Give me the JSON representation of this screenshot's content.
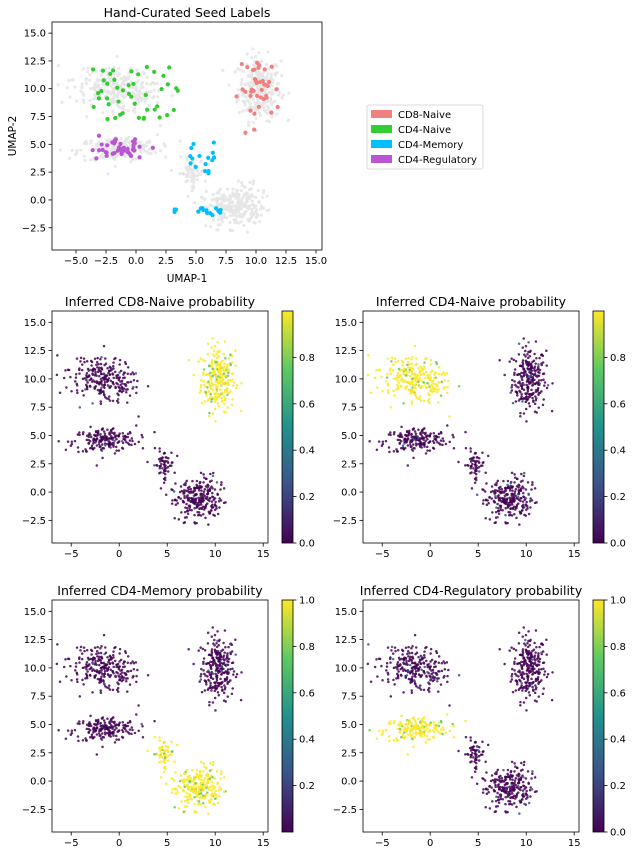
{
  "chart_data": [
    {
      "type": "scatter",
      "title": "Hand-Curated Seed Labels",
      "xlabel": "UMAP-1",
      "ylabel": "UMAP-2",
      "xlim": [
        -7,
        15.5
      ],
      "ylim": [
        -4.5,
        16
      ],
      "x_ticks": [
        -5.0,
        -2.5,
        0.0,
        2.5,
        5.0,
        7.5,
        10.0,
        12.5,
        15.0
      ],
      "y_ticks": [
        -2.5,
        0.0,
        2.5,
        5.0,
        7.5,
        10.0,
        12.5,
        15.0
      ],
      "x_tick_labels": [
        "−5.0",
        "−2.5",
        "0.0",
        "2.5",
        "5.0",
        "7.5",
        "10.0",
        "12.5",
        "15.0"
      ],
      "y_tick_labels": [
        "−2.5",
        "0.0",
        "2.5",
        "5.0",
        "7.5",
        "10.0",
        "12.5",
        "15.0"
      ],
      "background_color": "#e6e6e6",
      "grid": false,
      "legend_position": "right, outside axes",
      "series": [
        {
          "name": "CD8-Naive",
          "color": "#f08080"
        },
        {
          "name": "CD4-Naive",
          "color": "#32cd32"
        },
        {
          "name": "CD4-Memory",
          "color": "#00bfff"
        },
        {
          "name": "CD4-Regulatory",
          "color": "#ba55d3"
        }
      ]
    },
    {
      "type": "scatter",
      "title": "Inferred CD8-Naive probability",
      "xlim": [
        -7,
        15.5
      ],
      "ylim": [
        -4.5,
        16
      ],
      "x_ticks": [
        -5,
        0,
        5,
        10,
        15
      ],
      "y_ticks": [
        -2.5,
        0.0,
        2.5,
        5.0,
        7.5,
        10.0,
        12.5,
        15.0
      ],
      "x_tick_labels": [
        "−5",
        "0",
        "5",
        "10",
        "15"
      ],
      "y_tick_labels": [
        "−2.5",
        "0.0",
        "2.5",
        "5.0",
        "7.5",
        "10.0",
        "12.5",
        "15.0"
      ],
      "colorbar": {
        "range": [
          0.0,
          1.0
        ],
        "ticks": [
          0.0,
          0.2,
          0.4,
          0.6,
          0.8
        ],
        "tick_labels": [
          "0.0",
          "0.2",
          "0.4",
          "0.6",
          "0.8"
        ],
        "colormap": "viridis"
      },
      "high_probability_cluster": "top-right"
    },
    {
      "type": "scatter",
      "title": "Inferred CD4-Naive probability",
      "xlim": [
        -7,
        15.5
      ],
      "ylim": [
        -4.5,
        16
      ],
      "x_ticks": [
        -5,
        0,
        5,
        10,
        15
      ],
      "y_ticks": [
        -2.5,
        0.0,
        2.5,
        5.0,
        7.5,
        10.0,
        12.5,
        15.0
      ],
      "x_tick_labels": [
        "−5",
        "0",
        "5",
        "10",
        "15"
      ],
      "y_tick_labels": [
        "−2.5",
        "0.0",
        "2.5",
        "5.0",
        "7.5",
        "10.0",
        "12.5",
        "15.0"
      ],
      "colorbar": {
        "range": [
          0.0,
          1.0
        ],
        "ticks": [
          0.0,
          0.2,
          0.4,
          0.6,
          0.8
        ],
        "tick_labels": [
          "0.0",
          "0.2",
          "0.4",
          "0.6",
          "0.8"
        ],
        "colormap": "viridis"
      },
      "high_probability_cluster": "top-left"
    },
    {
      "type": "scatter",
      "title": "Inferred CD4-Memory probability",
      "xlim": [
        -7,
        15.5
      ],
      "ylim": [
        -4.5,
        16
      ],
      "x_ticks": [
        -5,
        0,
        5,
        10,
        15
      ],
      "y_ticks": [
        -2.5,
        0.0,
        2.5,
        5.0,
        7.5,
        10.0,
        12.5,
        15.0
      ],
      "x_tick_labels": [
        "−5",
        "0",
        "5",
        "10",
        "15"
      ],
      "y_tick_labels": [
        "−2.5",
        "0.0",
        "2.5",
        "5.0",
        "7.5",
        "10.0",
        "12.5",
        "15.0"
      ],
      "colorbar": {
        "range": [
          0.0,
          1.0
        ],
        "ticks": [
          0.2,
          0.4,
          0.6,
          0.8,
          1.0
        ],
        "tick_labels": [
          "0.2",
          "0.4",
          "0.6",
          "0.8",
          "1.0"
        ],
        "colormap": "viridis"
      },
      "high_probability_cluster": "bottom-right"
    },
    {
      "type": "scatter",
      "title": "Inferred CD4-Regulatory probability",
      "xlim": [
        -7,
        15.5
      ],
      "ylim": [
        -4.5,
        16
      ],
      "x_ticks": [
        -5,
        0,
        5,
        10,
        15
      ],
      "y_ticks": [
        -2.5,
        0.0,
        2.5,
        5.0,
        7.5,
        10.0,
        12.5,
        15.0
      ],
      "x_tick_labels": [
        "−5",
        "0",
        "5",
        "10",
        "15"
      ],
      "y_tick_labels": [
        "−2.5",
        "0.0",
        "2.5",
        "5.0",
        "7.5",
        "10.0",
        "12.5",
        "15.0"
      ],
      "colorbar": {
        "range": [
          0.0,
          1.0
        ],
        "ticks": [
          0.0,
          0.2,
          0.4,
          0.6,
          0.8,
          1.0
        ],
        "tick_labels": [
          "0.0",
          "0.2",
          "0.4",
          "0.6",
          "0.8",
          "1.0"
        ],
        "colormap": "viridis"
      },
      "high_probability_cluster": "middle-left"
    }
  ]
}
